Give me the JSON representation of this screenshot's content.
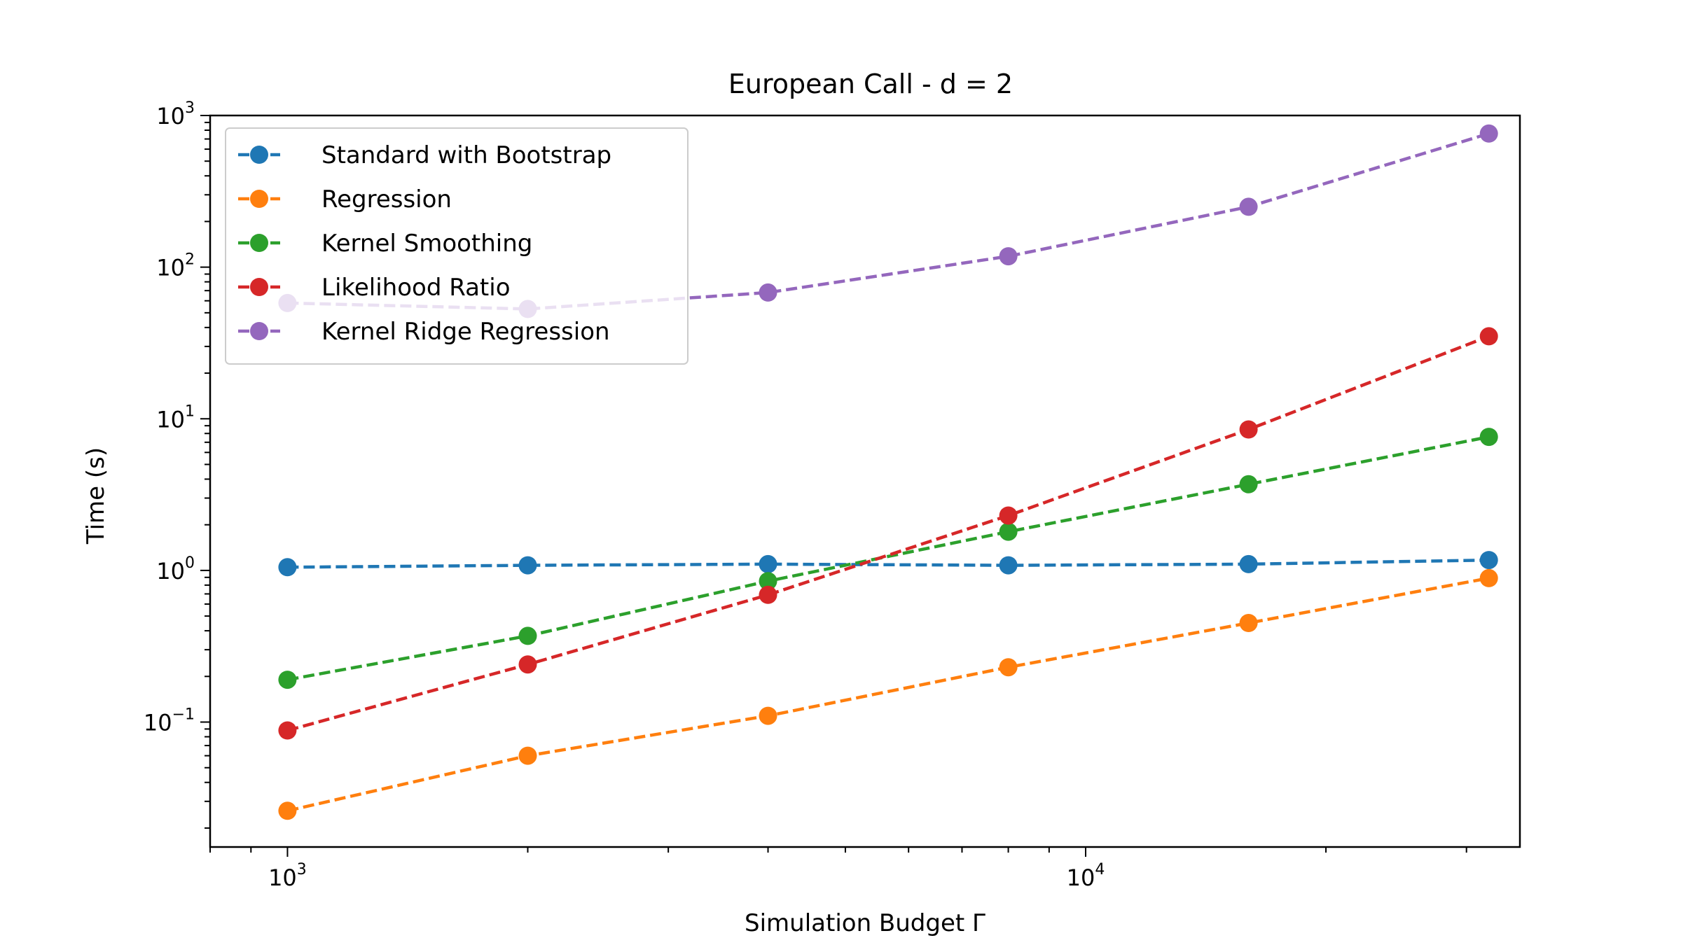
{
  "chart_data": {
    "type": "line",
    "title": "European Call - d = 2",
    "xlabel": "Simulation Budget Γ",
    "ylabel": "Time (s)",
    "xscale": "log",
    "yscale": "log",
    "xlim": [
      800,
      35000
    ],
    "ylim": [
      0.015,
      1000
    ],
    "x": [
      1000,
      2000,
      4000,
      8000,
      16000,
      32000
    ],
    "x_ticks": [
      {
        "value": 1000,
        "base": "10",
        "exp": "3"
      },
      {
        "value": 10000,
        "base": "10",
        "exp": "4"
      }
    ],
    "y_ticks": [
      {
        "value": 0.1,
        "base": "10",
        "exp": "−1"
      },
      {
        "value": 1,
        "base": "10",
        "exp": "0"
      },
      {
        "value": 10,
        "base": "10",
        "exp": "1"
      },
      {
        "value": 100,
        "base": "10",
        "exp": "2"
      },
      {
        "value": 1000,
        "base": "10",
        "exp": "3"
      }
    ],
    "legend_position": "top-left",
    "grid": false,
    "series": [
      {
        "name": "Standard with Bootstrap",
        "color": "#1f77b4",
        "values": [
          1.05,
          1.08,
          1.1,
          1.08,
          1.1,
          1.17
        ]
      },
      {
        "name": "Regression",
        "color": "#ff7f0e",
        "values": [
          0.026,
          0.06,
          0.11,
          0.23,
          0.45,
          0.89
        ]
      },
      {
        "name": "Kernel Smoothing",
        "color": "#2ca02c",
        "values": [
          0.19,
          0.37,
          0.85,
          1.8,
          3.7,
          7.6
        ]
      },
      {
        "name": "Likelihood Ratio",
        "color": "#d62728",
        "values": [
          0.088,
          0.24,
          0.69,
          2.3,
          8.5,
          35
        ]
      },
      {
        "name": "Kernel Ridge Regression",
        "color": "#9467bd",
        "values": [
          58,
          53,
          68,
          118,
          250,
          760
        ]
      }
    ]
  }
}
